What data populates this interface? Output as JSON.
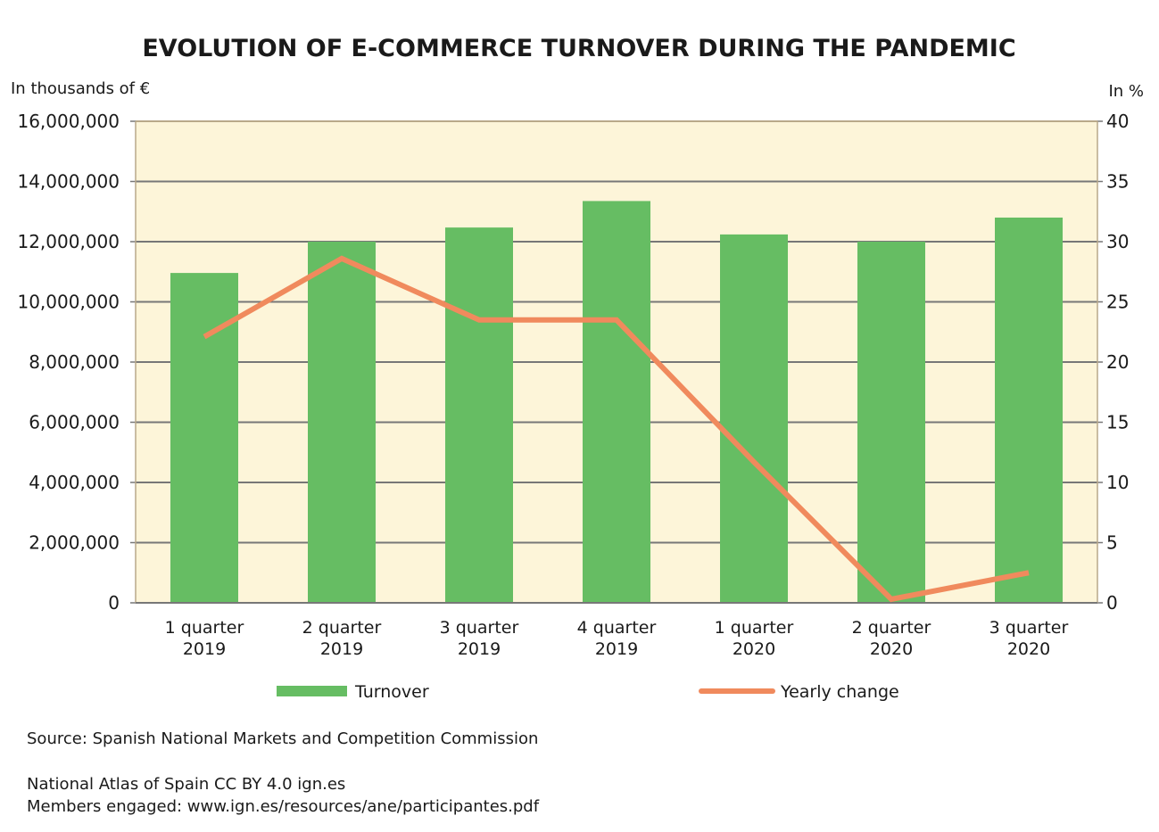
{
  "chart_data": {
    "type": "bar+line",
    "title": "EVOLUTION OF E-COMMERCE TURNOVER DURING THE PANDEMIC",
    "ylabel_left": "In thousands of €",
    "ylabel_right": "In %",
    "categories": [
      [
        "1 quarter",
        "2019"
      ],
      [
        "2 quarter",
        "2019"
      ],
      [
        "3 quarter",
        "2019"
      ],
      [
        "4 quarter",
        "2019"
      ],
      [
        "1 quarter",
        "2020"
      ],
      [
        "2 quarter",
        "2020"
      ],
      [
        "3 quarter",
        "2020"
      ]
    ],
    "ylim_left": [
      0,
      16000000
    ],
    "yticks_left": [
      "0",
      "2,000,000",
      "4,000,000",
      "6,000,000",
      "8,000,000",
      "10,000,000",
      "12,000,000",
      "14,000,000",
      "16,000,000"
    ],
    "ylim_right": [
      0,
      40
    ],
    "yticks_right": [
      "0",
      "5",
      "10",
      "15",
      "20",
      "25",
      "30",
      "35",
      "40"
    ],
    "grid": true,
    "legend_position": "bottom",
    "series": [
      {
        "name": "Turnover",
        "type": "bar",
        "axis": "left",
        "color": "#66bd63",
        "values": [
          10960000,
          12000000,
          12470000,
          13350000,
          12240000,
          12000000,
          12800000
        ]
      },
      {
        "name": "Yearly change",
        "type": "line",
        "axis": "right",
        "color": "#f08a5d",
        "values": [
          22.1,
          28.6,
          23.5,
          23.5,
          11.7,
          0.3,
          2.5
        ]
      }
    ],
    "background": "#fdf5d9"
  },
  "footer": {
    "source": "Source: Spanish National Markets and Competition Commission",
    "credit": "National Atlas of Spain CC BY 4.0 ign.es",
    "members": "Members engaged: www.ign.es/resources/ane/participantes.pdf"
  }
}
